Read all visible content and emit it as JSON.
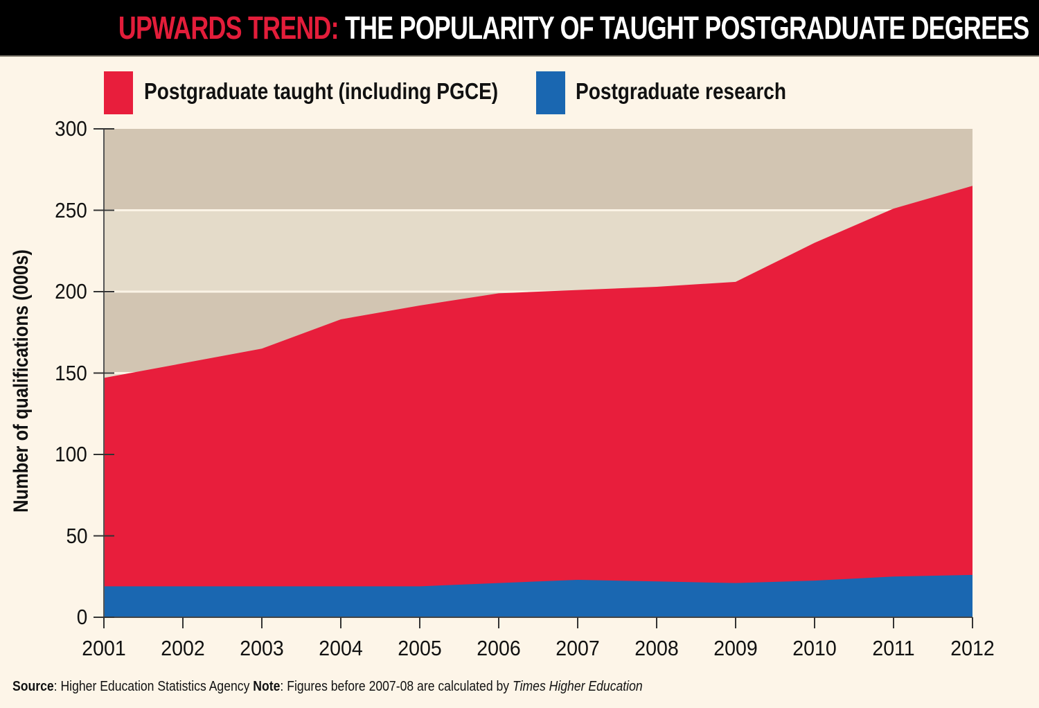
{
  "header": {
    "title_highlight": "UPWARDS TREND:",
    "title_rest": " THE POPULARITY OF TAUGHT POSTGRADUATE DEGREES"
  },
  "footer": {
    "source_label": "Source",
    "source_text": ": Higher Education Statistics Agency  ",
    "note_label": "Note",
    "note_text": ": Figures before 2007-08 are calculated by ",
    "note_italic": "Times Higher Education"
  },
  "colors": {
    "taught": "#e81e3c",
    "research": "#1a67b1",
    "band_dark": "#d2c5b2",
    "band_light": "#e4dbc9",
    "background": "#fdf5e8",
    "title_highlight": "#e31d3a"
  },
  "chart_data": {
    "type": "area",
    "stacked": true,
    "title": "UPWARDS TREND: THE POPULARITY OF TAUGHT POSTGRADUATE DEGREES",
    "xlabel": "",
    "ylabel": "Number of qualifications (000s)",
    "x": [
      "2001",
      "2002",
      "2003",
      "2004",
      "2005",
      "2006",
      "2007",
      "2008",
      "2009",
      "2010",
      "2011",
      "2012"
    ],
    "ylim": [
      0,
      300
    ],
    "yticks": [
      "0",
      "50",
      "100",
      "150",
      "200",
      "250",
      "300"
    ],
    "legend_position": "top",
    "grid": true,
    "series": [
      {
        "name": "Postgraduate research",
        "values": [
          19,
          19,
          19,
          19,
          19,
          21,
          23,
          22,
          21,
          22.5,
          25,
          26
        ]
      },
      {
        "name": "Postgraduate taught (including PGCE)",
        "values": [
          128,
          137,
          146,
          164,
          172.5,
          178,
          178,
          181,
          185,
          207.5,
          226,
          239
        ]
      }
    ],
    "totals": [
      147,
      156,
      165,
      183,
      191.5,
      199,
      201,
      203,
      206,
      230,
      251,
      265
    ]
  },
  "legend": [
    {
      "label": "Postgraduate taught (including PGCE)"
    },
    {
      "label": "Postgraduate research"
    }
  ]
}
